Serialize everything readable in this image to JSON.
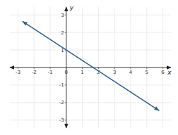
{
  "chart_data": {
    "type": "line",
    "xlabel": "x",
    "ylabel": "y",
    "x": [
      -2.7,
      5.75
    ],
    "series": [
      {
        "values": [
          2.62,
          -2.45
        ],
        "color": "#2e5f8a"
      }
    ],
    "xlim": [
      -3.5,
      6.5
    ],
    "ylim": [
      -3.45,
      3.45
    ],
    "xticks": [
      -3,
      -2,
      -1,
      0,
      1,
      2,
      3,
      4,
      5,
      6
    ],
    "yticks": [
      -3,
      -2,
      -1,
      1,
      2,
      3
    ],
    "grid": true
  }
}
